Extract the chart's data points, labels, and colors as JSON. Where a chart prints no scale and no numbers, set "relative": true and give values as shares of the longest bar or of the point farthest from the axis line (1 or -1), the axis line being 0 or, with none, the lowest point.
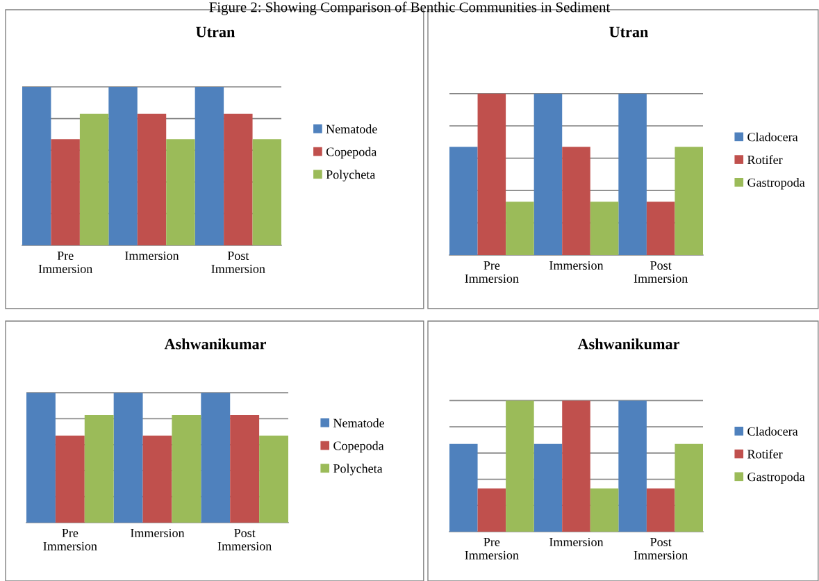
{
  "chart_data": [
    {
      "type": "bar",
      "title": "Utran",
      "annotations": [
        "Figure 2: Showing Comparison of Benthic Communities in Sediment"
      ],
      "categories": [
        "Pre Immersion",
        "Immersion",
        "Post Immersion"
      ],
      "relative": true,
      "grid": "y",
      "legend": "right",
      "series": [
        {
          "name": "Nematode",
          "color": "#4f81bd",
          "values": [
            1,
            1,
            1
          ]
        },
        {
          "name": "Copepoda",
          "color": "#c0504d",
          "values": [
            0.67,
            0.83,
            0.83
          ]
        },
        {
          "name": "Polycheta",
          "color": "#9bbb59",
          "values": [
            0.83,
            0.67,
            0.67
          ]
        }
      ]
    },
    {
      "type": "bar",
      "title": "Utran",
      "categories": [
        "Pre Immersion",
        "Immersion",
        "Post Immersion"
      ],
      "relative": true,
      "grid": "y",
      "legend": "right",
      "series": [
        {
          "name": "Cladocera",
          "color": "#4f81bd",
          "values": [
            0.67,
            1,
            1
          ]
        },
        {
          "name": "Rotifer",
          "color": "#c0504d",
          "values": [
            1,
            0.67,
            0.33
          ]
        },
        {
          "name": "Gastropoda",
          "color": "#9bbb59",
          "values": [
            0.33,
            0.33,
            0.67
          ]
        }
      ]
    },
    {
      "type": "bar",
      "title": "Ashwanikumar",
      "categories": [
        "Pre Immersion",
        "Immersion",
        "Post Immersion"
      ],
      "relative": true,
      "grid": "y",
      "legend": "right",
      "series": [
        {
          "name": "Nematode",
          "color": "#4f81bd",
          "values": [
            1,
            1,
            1
          ]
        },
        {
          "name": "Copepoda",
          "color": "#c0504d",
          "values": [
            0.67,
            0.67,
            0.83
          ]
        },
        {
          "name": "Polycheta",
          "color": "#9bbb59",
          "values": [
            0.83,
            0.83,
            0.67
          ]
        }
      ]
    },
    {
      "type": "bar",
      "title": "Ashwanikumar",
      "categories": [
        "Pre Immersion",
        "Immersion",
        "Post Immersion"
      ],
      "relative": true,
      "grid": "y",
      "legend": "right",
      "series": [
        {
          "name": "Cladocera",
          "color": "#4f81bd",
          "values": [
            0.67,
            0.67,
            1
          ]
        },
        {
          "name": "Rotifer",
          "color": "#c0504d",
          "values": [
            0.33,
            1,
            0.33
          ]
        },
        {
          "name": "Gastropoda",
          "color": "#9bbb59",
          "values": [
            1,
            0.33,
            0.67
          ]
        }
      ]
    }
  ]
}
